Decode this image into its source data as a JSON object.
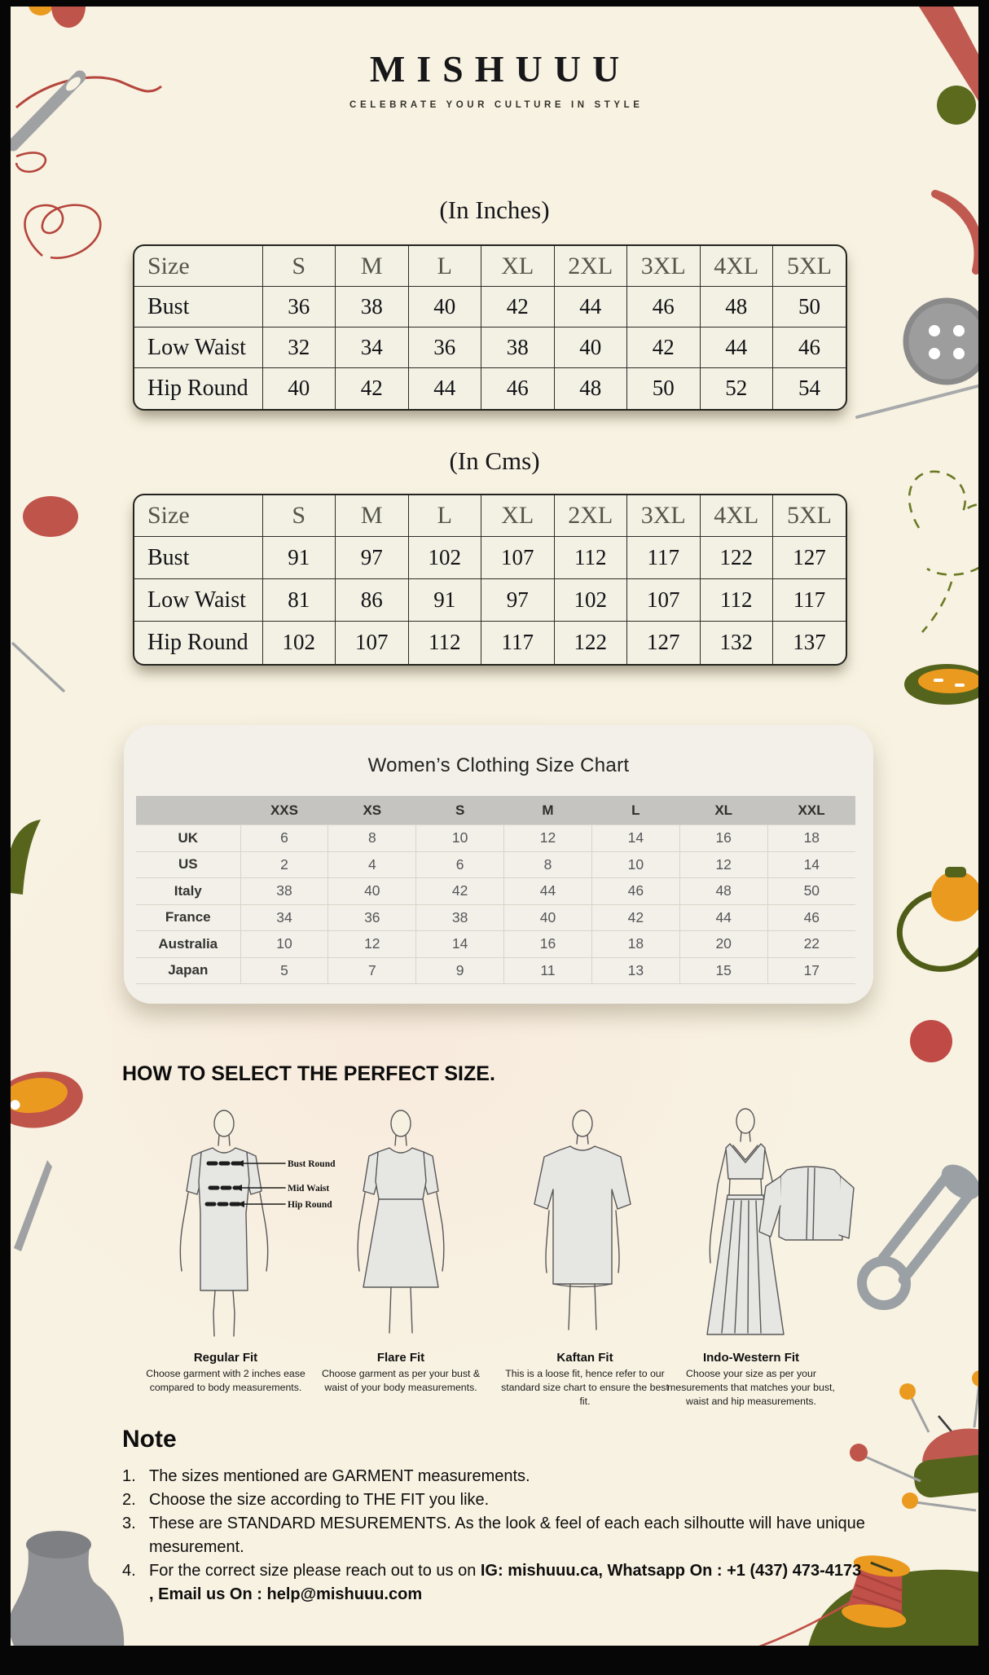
{
  "brand": {
    "name": "MISHUUU",
    "tagline": "CELEBRATE YOUR CULTURE IN STYLE"
  },
  "inches_table": {
    "title": "(In Inches)",
    "header": [
      "Size",
      "S",
      "M",
      "L",
      "XL",
      "2XL",
      "3XL",
      "4XL",
      "5XL"
    ],
    "rows": [
      {
        "label": "Bust",
        "values": [
          "36",
          "38",
          "40",
          "42",
          "44",
          "46",
          "48",
          "50"
        ]
      },
      {
        "label": "Low Waist",
        "values": [
          "32",
          "34",
          "36",
          "38",
          "40",
          "42",
          "44",
          "46"
        ]
      },
      {
        "label": "Hip Round",
        "values": [
          "40",
          "42",
          "44",
          "46",
          "48",
          "50",
          "52",
          "54"
        ]
      }
    ]
  },
  "cms_table": {
    "title": "(In Cms)",
    "header": [
      "Size",
      "S",
      "M",
      "L",
      "XL",
      "2XL",
      "3XL",
      "4XL",
      "5XL"
    ],
    "rows": [
      {
        "label": "Bust",
        "values": [
          "91",
          "97",
          "102",
          "107",
          "112",
          "117",
          "122",
          "127"
        ]
      },
      {
        "label": "Low Waist",
        "values": [
          "81",
          "86",
          "91",
          "97",
          "102",
          "107",
          "112",
          "117"
        ]
      },
      {
        "label": "Hip Round",
        "values": [
          "102",
          "107",
          "112",
          "117",
          "122",
          "127",
          "132",
          "137"
        ]
      }
    ]
  },
  "intl_chart": {
    "title": "Women’s Clothing Size Chart",
    "header": [
      "",
      "XXS",
      "XS",
      "S",
      "M",
      "L",
      "XL",
      "XXL"
    ],
    "rows": [
      {
        "label": "UK",
        "values": [
          "6",
          "8",
          "10",
          "12",
          "14",
          "16",
          "18"
        ]
      },
      {
        "label": "US",
        "values": [
          "2",
          "4",
          "6",
          "8",
          "10",
          "12",
          "14"
        ]
      },
      {
        "label": "Italy",
        "values": [
          "38",
          "40",
          "42",
          "44",
          "46",
          "48",
          "50"
        ]
      },
      {
        "label": "France",
        "values": [
          "34",
          "36",
          "38",
          "40",
          "42",
          "44",
          "46"
        ]
      },
      {
        "label": "Australia",
        "values": [
          "10",
          "12",
          "14",
          "16",
          "18",
          "20",
          "22"
        ]
      },
      {
        "label": "Japan",
        "values": [
          "5",
          "7",
          "9",
          "11",
          "13",
          "15",
          "17"
        ]
      }
    ]
  },
  "fit_section": {
    "heading": "HOW TO SELECT THE PERFECT SIZE.",
    "measure_labels": [
      "Bust Round",
      "Mid Waist",
      "Hip Round"
    ],
    "fits": [
      {
        "name": "Regular Fit",
        "description": "Choose garment with 2 inches ease compared to body measurements."
      },
      {
        "name": "Flare Fit",
        "description": "Choose garment as per your bust & waist of your body measurements."
      },
      {
        "name": "Kaftan Fit",
        "description": "This is a loose fit, hence refer to our standard size chart to ensure the best fit."
      },
      {
        "name": "Indo-Western Fit",
        "description": "Choose your size as per your mesurements that matches your bust, waist and hip measurements."
      }
    ]
  },
  "note": {
    "heading": "Note",
    "items": [
      [
        {
          "t": "The sizes mentioned are GARMENT measurements.",
          "b": false
        }
      ],
      [
        {
          "t": "Choose the size according to THE FIT you like.",
          "b": false
        }
      ],
      [
        {
          "t": "These are STANDARD MESUREMENTS. As the look & feel of each each silhoutte will have unique mesurement.",
          "b": false
        }
      ],
      [
        {
          "t": "For the correct size please reach out to us on ",
          "b": false
        },
        {
          "t": "IG: mishuuu.ca, Whatsapp On : +1 (437) 473-4173 , Email us On : help@mishuuu.com",
          "b": true
        }
      ]
    ]
  },
  "colors": {
    "background_cream": "#f8f2e2",
    "frame_black": "#060606",
    "accent_red": "#bf544a",
    "accent_orange": "#eb9a20",
    "accent_olive": "#5b6a1d",
    "tool_gray": "#9fa1a3",
    "chart_header_gray": "#c5c4c0"
  }
}
